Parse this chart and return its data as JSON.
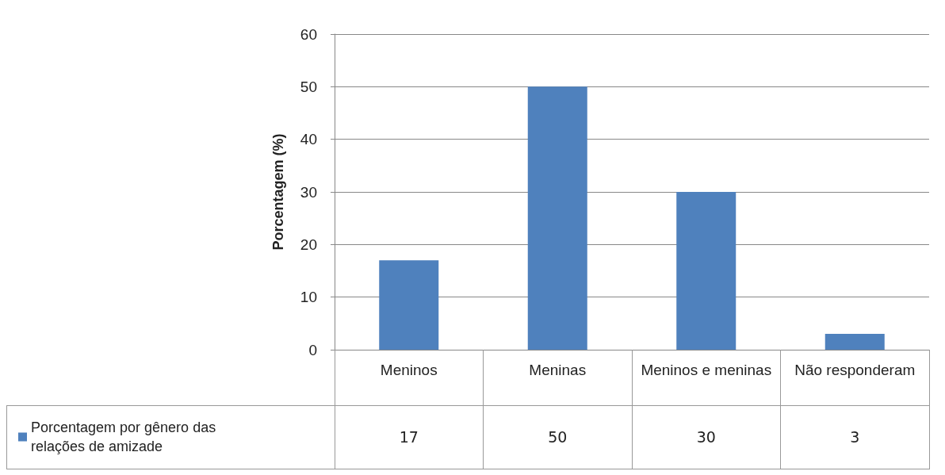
{
  "chart_data": {
    "type": "bar",
    "ylabel": "Porcentagem (%)",
    "categories": [
      "Meninos",
      "Meninas",
      "Meninos e meninas",
      "Não responderam"
    ],
    "series": [
      {
        "name": "Porcentagem por gênero das relações de amizade",
        "color": "#4f81bd",
        "values": [
          17,
          50,
          30,
          3
        ]
      }
    ],
    "ylim": [
      0,
      60
    ],
    "yticks": [
      0,
      10,
      20,
      30,
      40,
      50,
      60
    ],
    "grid": "y",
    "legend": "bottom left",
    "data_labels": true
  }
}
